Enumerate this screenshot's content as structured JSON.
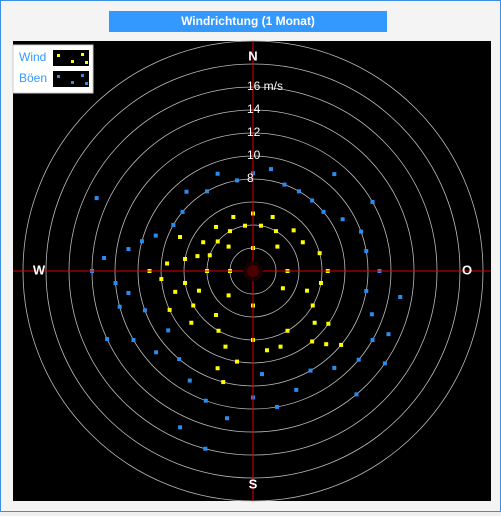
{
  "chart_data": {
    "type": "polar_scatter",
    "title": "Windrichtung (1 Monat)",
    "directions": [
      "N",
      "O",
      "S",
      "W"
    ],
    "direction_angles": [
      0,
      90,
      180,
      270
    ],
    "rings": [
      2,
      4,
      6,
      8,
      10,
      12,
      14,
      16,
      18,
      20
    ],
    "rticks": [
      8,
      10,
      12,
      14,
      {
        "value": 16,
        "label": "16 m/s"
      }
    ],
    "rlim": [
      0,
      20
    ],
    "series": [
      {
        "name": "Böen",
        "color": "#2a8cf0",
        "theta": [
          270,
          265,
          275,
          260,
          280,
          255,
          285,
          250,
          290,
          300,
          310,
          320,
          330,
          340,
          350,
          0,
          10,
          20,
          30,
          40,
          50,
          60,
          70,
          80,
          90,
          100,
          110,
          120,
          130,
          140,
          150,
          160,
          170,
          180,
          190,
          200,
          210,
          220,
          230,
          240,
          245,
          205,
          195,
          140,
          115,
          295,
          60,
          40,
          235,
          175,
          125,
          100
        ],
        "values": [
          14,
          12,
          13,
          11,
          11,
          12,
          10,
          10,
          9,
          8,
          8,
          9,
          8,
          9,
          8,
          8.5,
          9,
          8,
          8,
          8,
          8,
          9,
          10,
          10,
          11,
          10,
          11,
          12,
          12,
          11,
          10,
          11,
          12,
          11,
          13,
          12,
          11,
          10,
          11,
          12,
          14,
          15,
          16,
          14,
          13,
          15,
          12,
          11,
          9,
          9,
          14,
          13
        ]
      },
      {
        "name": "Wind",
        "color": "#ffff00",
        "theta": [
          270,
          265,
          275,
          260,
          280,
          255,
          285,
          250,
          290,
          270,
          245,
          295,
          300,
          240,
          310,
          320,
          330,
          340,
          350,
          0,
          10,
          20,
          30,
          45,
          60,
          75,
          90,
          100,
          110,
          120,
          130,
          135,
          140,
          150,
          160,
          170,
          180,
          190,
          200,
          210,
          220,
          230,
          90,
          180,
          270,
          0,
          120,
          225,
          315,
          45,
          200,
          195,
          130,
          125
        ],
        "values": [
          9,
          8,
          7.5,
          6,
          6,
          7,
          5,
          5,
          4,
          4,
          8,
          7,
          5,
          6,
          4,
          5,
          4,
          5,
          4,
          5,
          4,
          5,
          4,
          5,
          5,
          6,
          6.5,
          6,
          5,
          6,
          7,
          9,
          8,
          6,
          7,
          7,
          6,
          8,
          7,
          6,
          5,
          7,
          3,
          3,
          2,
          2,
          3,
          3,
          3,
          3,
          9,
          10,
          10,
          8
        ]
      }
    ]
  }
}
